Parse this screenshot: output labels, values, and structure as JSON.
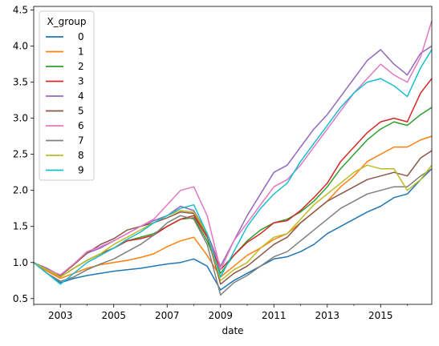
{
  "chart_data": {
    "type": "line",
    "title": "",
    "xlabel": "date",
    "ylabel": "",
    "x_range": [
      "2002-01",
      "2016-12"
    ],
    "ylim": [
      0.42,
      4.55
    ],
    "x_ticks": [
      "2003",
      "2005",
      "2007",
      "2009",
      "2011",
      "2013",
      "2015"
    ],
    "y_ticks": [
      "0.5",
      "1.0",
      "1.5",
      "2.0",
      "2.5",
      "3.0",
      "3.5",
      "4.0",
      "4.5"
    ],
    "grid": false,
    "legend": {
      "title": "X_group",
      "placement": "top-left"
    },
    "x": [
      "2002-01",
      "2002-07",
      "2003-01",
      "2003-07",
      "2004-01",
      "2004-07",
      "2005-01",
      "2005-07",
      "2006-01",
      "2006-07",
      "2007-01",
      "2007-07",
      "2008-01",
      "2008-07",
      "2009-01",
      "2009-07",
      "2010-01",
      "2010-07",
      "2011-01",
      "2011-07",
      "2012-01",
      "2012-07",
      "2013-01",
      "2013-07",
      "2014-01",
      "2014-07",
      "2015-01",
      "2015-07",
      "2016-01",
      "2016-07",
      "2016-12"
    ],
    "series": [
      {
        "name": "0",
        "color": "#1f77b4",
        "values": [
          1.0,
          0.85,
          0.72,
          0.78,
          0.82,
          0.85,
          0.88,
          0.9,
          0.92,
          0.95,
          0.98,
          1.0,
          1.05,
          0.95,
          0.62,
          0.75,
          0.85,
          0.95,
          1.05,
          1.08,
          1.15,
          1.25,
          1.4,
          1.5,
          1.6,
          1.7,
          1.78,
          1.9,
          1.95,
          2.15,
          2.3
        ]
      },
      {
        "name": "1",
        "color": "#ff7f0e",
        "values": [
          1.0,
          0.88,
          0.78,
          0.85,
          0.92,
          0.97,
          1.0,
          1.03,
          1.07,
          1.12,
          1.22,
          1.3,
          1.35,
          1.1,
          0.8,
          0.95,
          1.1,
          1.2,
          1.32,
          1.4,
          1.55,
          1.7,
          1.85,
          2.05,
          2.2,
          2.4,
          2.5,
          2.6,
          2.6,
          2.7,
          2.75
        ]
      },
      {
        "name": "2",
        "color": "#2ca02c",
        "values": [
          1.0,
          0.9,
          0.8,
          0.92,
          1.03,
          1.12,
          1.2,
          1.3,
          1.35,
          1.4,
          1.5,
          1.6,
          1.62,
          1.3,
          0.85,
          1.1,
          1.3,
          1.45,
          1.55,
          1.6,
          1.7,
          1.85,
          2.05,
          2.3,
          2.5,
          2.7,
          2.85,
          2.95,
          2.9,
          3.05,
          3.15
        ]
      },
      {
        "name": "3",
        "color": "#d62728",
        "values": [
          1.0,
          0.9,
          0.8,
          0.92,
          1.03,
          1.12,
          1.2,
          1.3,
          1.33,
          1.38,
          1.5,
          1.6,
          1.65,
          1.35,
          0.9,
          1.1,
          1.28,
          1.4,
          1.55,
          1.58,
          1.72,
          1.9,
          2.1,
          2.4,
          2.6,
          2.8,
          2.95,
          3.0,
          2.95,
          3.35,
          3.55
        ]
      },
      {
        "name": "4",
        "color": "#9467bd",
        "values": [
          1.0,
          0.92,
          0.82,
          0.97,
          1.13,
          1.2,
          1.3,
          1.4,
          1.5,
          1.58,
          1.65,
          1.78,
          1.72,
          1.4,
          0.95,
          1.3,
          1.65,
          1.95,
          2.25,
          2.35,
          2.6,
          2.85,
          3.05,
          3.3,
          3.55,
          3.8,
          3.95,
          3.75,
          3.6,
          3.9,
          4.0
        ]
      },
      {
        "name": "5",
        "color": "#8c564b",
        "values": [
          1.0,
          0.9,
          0.82,
          0.97,
          1.13,
          1.25,
          1.33,
          1.45,
          1.5,
          1.55,
          1.62,
          1.7,
          1.68,
          1.38,
          0.7,
          0.85,
          0.95,
          1.1,
          1.25,
          1.35,
          1.55,
          1.7,
          1.85,
          1.95,
          2.05,
          2.15,
          2.2,
          2.25,
          2.2,
          2.45,
          2.55
        ]
      },
      {
        "name": "6",
        "color": "#e377c2",
        "values": [
          1.0,
          0.9,
          0.83,
          0.98,
          1.15,
          1.22,
          1.3,
          1.4,
          1.5,
          1.6,
          1.8,
          2.0,
          2.05,
          1.65,
          0.9,
          1.3,
          1.55,
          1.8,
          2.05,
          2.15,
          2.35,
          2.6,
          2.85,
          3.1,
          3.35,
          3.55,
          3.75,
          3.6,
          3.5,
          3.85,
          4.35
        ]
      },
      {
        "name": "7",
        "color": "#7f7f7f",
        "values": [
          1.0,
          0.85,
          0.74,
          0.8,
          0.9,
          0.98,
          1.05,
          1.15,
          1.25,
          1.38,
          1.55,
          1.65,
          1.6,
          1.25,
          0.55,
          0.72,
          0.82,
          0.95,
          1.08,
          1.15,
          1.3,
          1.45,
          1.6,
          1.75,
          1.85,
          1.95,
          2.0,
          2.05,
          2.05,
          2.2,
          2.3
        ]
      },
      {
        "name": "8",
        "color": "#bcbd22",
        "values": [
          1.0,
          0.9,
          0.8,
          0.92,
          1.03,
          1.12,
          1.25,
          1.35,
          1.45,
          1.55,
          1.65,
          1.72,
          1.7,
          1.4,
          0.75,
          0.9,
          1.0,
          1.2,
          1.35,
          1.4,
          1.6,
          1.8,
          1.95,
          2.1,
          2.25,
          2.35,
          2.3,
          2.3,
          2.0,
          2.15,
          2.35
        ]
      },
      {
        "name": "9",
        "color": "#17becf",
        "values": [
          1.0,
          0.85,
          0.7,
          0.85,
          1.0,
          1.1,
          1.2,
          1.32,
          1.42,
          1.55,
          1.65,
          1.75,
          1.8,
          1.4,
          0.8,
          1.15,
          1.5,
          1.75,
          1.95,
          2.1,
          2.4,
          2.65,
          2.9,
          3.15,
          3.35,
          3.5,
          3.55,
          3.45,
          3.3,
          3.7,
          3.95
        ]
      }
    ]
  }
}
